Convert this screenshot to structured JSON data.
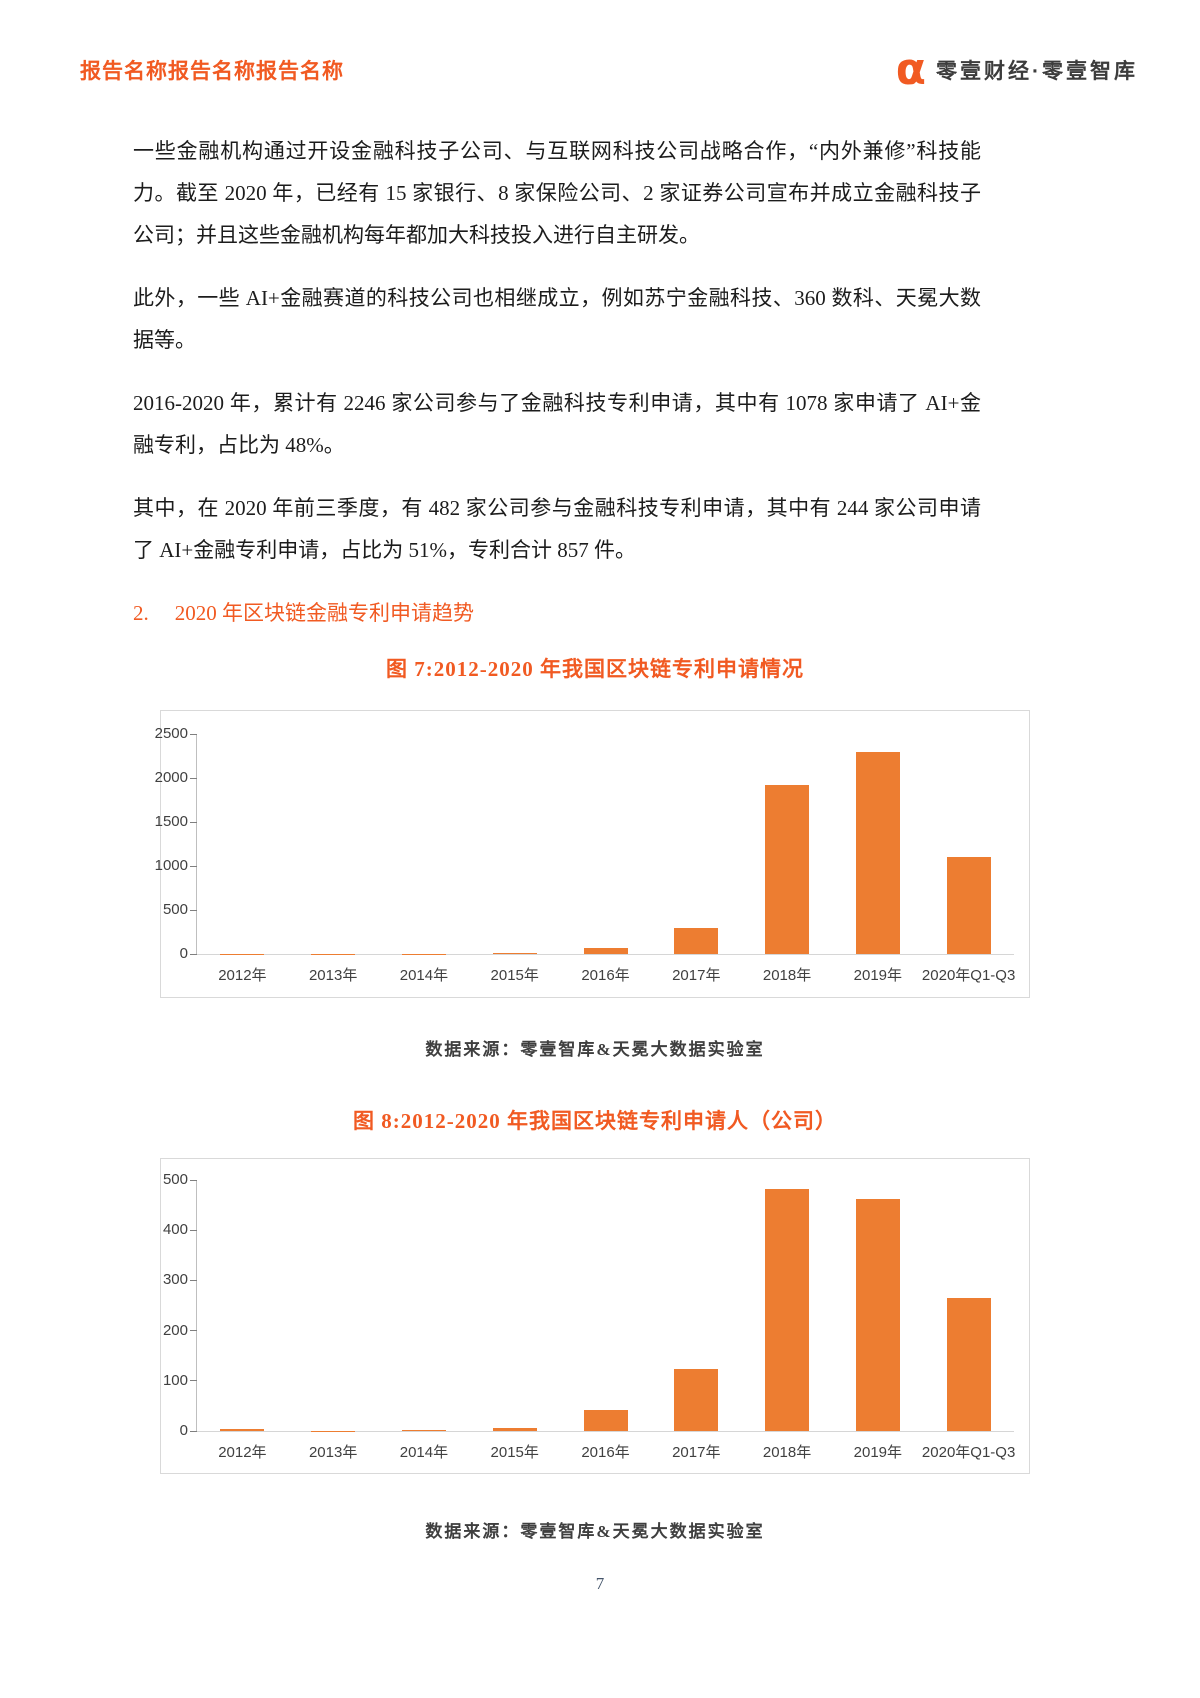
{
  "header": {
    "report_title": "报告名称报告名称报告名称",
    "logo_glyph": "α",
    "brand": "零壹财经·零壹智库"
  },
  "colors": {
    "accent_orange": "#F15A22",
    "bar_orange": "#ED7D31",
    "body_text": "#1c1c1c",
    "axis_text": "#404040",
    "page_number_blue": "#44546A"
  },
  "paragraphs": [
    "一些金融机构通过开设金融科技子公司、与互联网科技公司战略合作，“内外兼修”科技能力。截至 2020 年，已经有 15 家银行、8 家保险公司、2 家证券公司宣布并成立金融科技子公司；并且这些金融机构每年都加大科技投入进行自主研发。",
    "此外，一些 AI+金融赛道的科技公司也相继成立，例如苏宁金融科技、360 数科、天冕大数据等。",
    "2016-2020 年，累计有 2246 家公司参与了金融科技专利申请，其中有 1078 家申请了 AI+金融专利，占比为 48%。",
    "其中，在 2020 年前三季度，有 482 家公司参与金融科技专利申请，其中有 244 家公司申请了 AI+金融专利申请，占比为 51%，专利合计 857 件。"
  ],
  "section_heading": {
    "number": "2.",
    "text": "2020 年区块链金融专利申请趋势"
  },
  "figure7": {
    "title": "图 7:2012-2020 年我国区块链专利申请情况",
    "source": "数据来源：零壹智库&天冕大数据实验室"
  },
  "figure8": {
    "title": "图 8:2012-2020 年我国区块链专利申请人（公司）",
    "source": "数据来源：零壹智库&天冕大数据实验室"
  },
  "page_number": "7",
  "chart_data": [
    {
      "id": "fig7",
      "type": "bar",
      "title": "图 7:2012-2020 年我国区块链专利申请情况",
      "categories": [
        "2012年",
        "2013年",
        "2014年",
        "2015年",
        "2016年",
        "2017年",
        "2018年",
        "2019年",
        "2020年Q1-Q3"
      ],
      "values": [
        2,
        3,
        5,
        10,
        70,
        295,
        1920,
        2290,
        1100
      ],
      "ylim": [
        0,
        2500
      ],
      "yticks": [
        0,
        500,
        1000,
        1500,
        2000,
        2500
      ],
      "bar_color": "#ED7D31",
      "grid": false,
      "legend": "none",
      "xlabel": "",
      "ylabel": ""
    },
    {
      "id": "fig8",
      "type": "bar",
      "title": "图 8:2012-2020 年我国区块链专利申请人（公司）",
      "categories": [
        "2012年",
        "2013年",
        "2014年",
        "2015年",
        "2016年",
        "2017年",
        "2018年",
        "2019年",
        "2020年Q1-Q3"
      ],
      "values": [
        4,
        1,
        3,
        7,
        42,
        124,
        483,
        462,
        265
      ],
      "ylim": [
        0,
        500
      ],
      "yticks": [
        0,
        100,
        200,
        300,
        400,
        500
      ],
      "bar_color": "#ED7D31",
      "grid": false,
      "legend": "none",
      "xlabel": "",
      "ylabel": ""
    }
  ]
}
